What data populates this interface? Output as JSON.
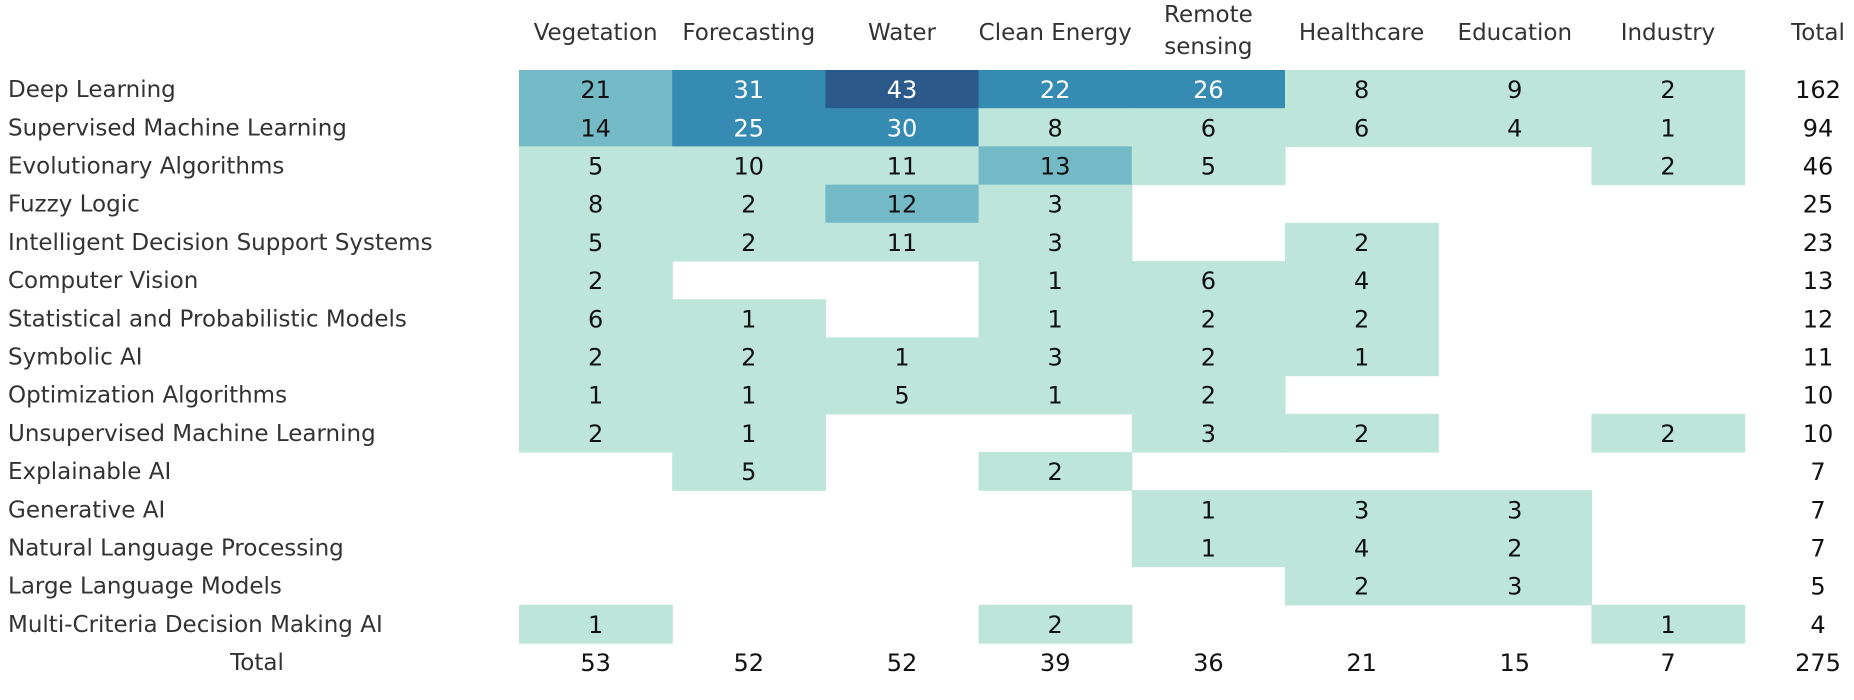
{
  "chart_data": {
    "type": "heatmap",
    "columns": [
      {
        "label": [
          "Vegetation"
        ]
      },
      {
        "label": [
          "Forecasting"
        ]
      },
      {
        "label": [
          "Water"
        ]
      },
      {
        "label": [
          "Clean Energy"
        ]
      },
      {
        "label": [
          "Remote",
          "sensing"
        ]
      },
      {
        "label": [
          "Healthcare"
        ]
      },
      {
        "label": [
          "Education"
        ]
      },
      {
        "label": [
          "Industry"
        ]
      }
    ],
    "total_label": "Total",
    "rows": [
      {
        "label": "Deep Learning",
        "values": [
          21,
          31,
          43,
          22,
          26,
          8,
          9,
          2
        ],
        "total": 162
      },
      {
        "label": "Supervised Machine Learning",
        "values": [
          14,
          25,
          30,
          8,
          6,
          6,
          4,
          1
        ],
        "total": 94
      },
      {
        "label": "Evolutionary Algorithms",
        "values": [
          5,
          10,
          11,
          13,
          5,
          null,
          null,
          2
        ],
        "total": 46
      },
      {
        "label": "Fuzzy Logic",
        "values": [
          8,
          2,
          12,
          3,
          null,
          null,
          null,
          null
        ],
        "total": 25
      },
      {
        "label": "Intelligent Decision Support Systems",
        "values": [
          5,
          2,
          11,
          3,
          null,
          2,
          null,
          null
        ],
        "total": 23
      },
      {
        "label": "Computer Vision",
        "values": [
          2,
          null,
          null,
          1,
          6,
          4,
          null,
          null
        ],
        "total": 13
      },
      {
        "label": "Statistical and Probabilistic Models",
        "values": [
          6,
          1,
          null,
          1,
          2,
          2,
          null,
          null
        ],
        "total": 12
      },
      {
        "label": "Symbolic AI",
        "values": [
          2,
          2,
          1,
          3,
          2,
          1,
          null,
          null
        ],
        "total": 11
      },
      {
        "label": "Optimization Algorithms",
        "values": [
          1,
          1,
          5,
          1,
          2,
          null,
          null,
          null
        ],
        "total": 10
      },
      {
        "label": "Unsupervised Machine Learning",
        "values": [
          2,
          1,
          null,
          null,
          3,
          2,
          null,
          2
        ],
        "total": 10
      },
      {
        "label": "Explainable AI",
        "values": [
          null,
          5,
          null,
          2,
          null,
          null,
          null,
          null
        ],
        "total": 7
      },
      {
        "label": "Generative AI",
        "values": [
          null,
          null,
          null,
          null,
          1,
          3,
          3,
          null
        ],
        "total": 7
      },
      {
        "label": "Natural Language Processing",
        "values": [
          null,
          null,
          null,
          null,
          1,
          4,
          2,
          null
        ],
        "total": 7
      },
      {
        "label": "Large Language Models",
        "values": [
          null,
          null,
          null,
          null,
          null,
          2,
          3,
          null
        ],
        "total": 5
      },
      {
        "label": "Multi-Criteria Decision Making AI",
        "values": [
          1,
          null,
          null,
          2,
          null,
          null,
          null,
          1
        ],
        "total": 4
      }
    ],
    "column_totals": [
      53,
      52,
      52,
      39,
      36,
      21,
      15,
      7
    ],
    "grand_total": 275,
    "color_bins": [
      {
        "min": 0,
        "color": "#bde5da",
        "text": "#111111"
      },
      {
        "min": 12,
        "color": "#73b9c6",
        "text": "#111111"
      },
      {
        "min": 22,
        "color": "#368bb2",
        "text": "#ffffff"
      },
      {
        "min": 40,
        "color": "#2b5a8a",
        "text": "#ffffff"
      }
    ]
  }
}
